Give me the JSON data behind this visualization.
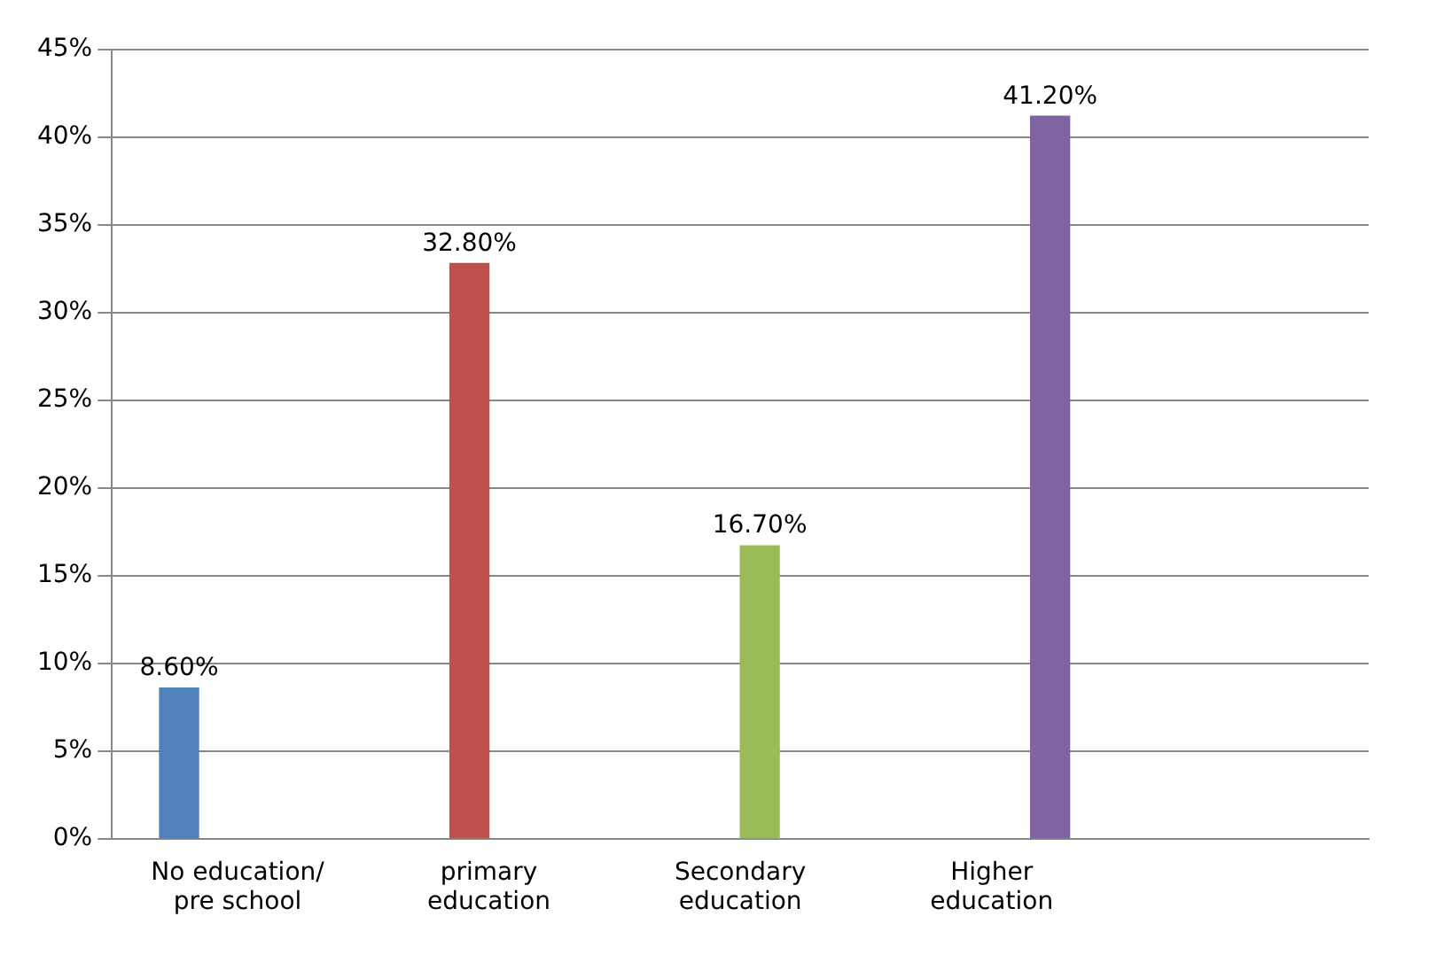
{
  "chart_data": {
    "type": "bar",
    "categories": [
      "No education/ pre school",
      "primary education",
      "Secondary education",
      "Higher education",
      null
    ],
    "series": [
      {
        "color": "#4f81bd",
        "values": [
          8.6,
          null,
          null,
          null,
          null
        ],
        "value_labels": [
          "8.60%",
          null,
          null,
          null,
          null
        ]
      },
      {
        "color": "#c0504d",
        "values": [
          null,
          32.8,
          null,
          null,
          null
        ],
        "value_labels": [
          null,
          "32.80%",
          null,
          null,
          null
        ]
      },
      {
        "color": "#9bbb59",
        "values": [
          null,
          null,
          16.7,
          null,
          null
        ],
        "value_labels": [
          null,
          null,
          "16.70%",
          null,
          null
        ]
      },
      {
        "color": "#8064a2",
        "values": [
          null,
          null,
          null,
          41.2,
          null
        ],
        "value_labels": [
          null,
          null,
          null,
          "41.20%",
          null
        ]
      }
    ],
    "ylim": [
      0,
      45
    ],
    "yticks": [
      {
        "value": 0,
        "label": "0%"
      },
      {
        "value": 5,
        "label": "5%"
      },
      {
        "value": 10,
        "label": "10%"
      },
      {
        "value": 15,
        "label": "15%"
      },
      {
        "value": 20,
        "label": "20%"
      },
      {
        "value": 25,
        "label": "25%"
      },
      {
        "value": 30,
        "label": "30%"
      },
      {
        "value": 35,
        "label": "35%"
      },
      {
        "value": 40,
        "label": "40%"
      },
      {
        "value": 45,
        "label": "45%"
      }
    ],
    "grid": "y",
    "legend": false
  }
}
